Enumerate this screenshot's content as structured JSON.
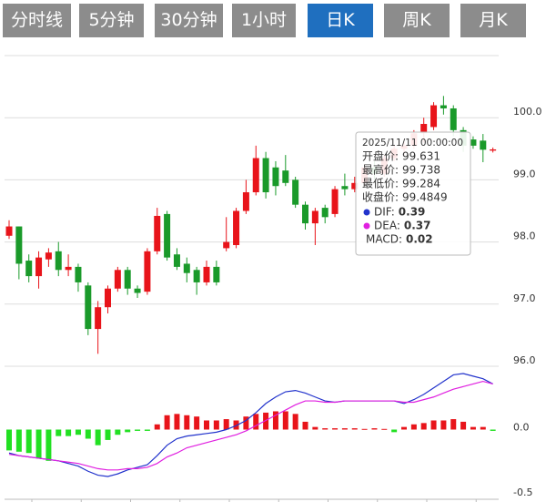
{
  "tabs": [
    {
      "label": "分时线",
      "active": false
    },
    {
      "label": "5分钟",
      "active": false
    },
    {
      "label": "30分钟",
      "active": false
    },
    {
      "label": "1小时",
      "active": false
    },
    {
      "label": "日K",
      "active": true
    },
    {
      "label": "周K",
      "active": false
    },
    {
      "label": "月K",
      "active": false
    }
  ],
  "chart_data": [
    {
      "type": "candlestick",
      "up_color": "#e8141a",
      "down_color": "#1a9a2a",
      "grid": true,
      "ylim": [
        96,
        101
      ],
      "yticks": [
        {
          "value": 96,
          "label": "96.0"
        },
        {
          "value": 97,
          "label": "97.0"
        },
        {
          "value": 98,
          "label": "98.0"
        },
        {
          "value": 99,
          "label": "99.0"
        },
        {
          "value": 100,
          "label": "100.0"
        }
      ],
      "open": [
        98.1,
        98.25,
        97.7,
        97.45,
        97.72,
        97.85,
        97.55,
        97.6,
        97.3,
        96.6,
        96.95,
        97.25,
        97.55,
        97.25,
        97.2,
        97.85,
        98.45,
        97.8,
        97.65,
        97.55,
        97.35,
        97.6,
        97.9,
        97.95,
        98.5,
        98.8,
        99.35,
        99.2,
        99.15,
        99.0,
        98.6,
        98.3,
        98.55,
        98.45,
        98.9,
        98.85,
        98.95,
        99.2,
        99.1,
        99.35,
        99.5,
        99.55,
        99.75,
        99.85,
        100.2,
        100.15,
        99.8,
        99.65,
        99.631,
        99.47
      ],
      "high": [
        98.35,
        98.25,
        97.8,
        97.85,
        97.9,
        98.0,
        97.8,
        97.65,
        97.35,
        97.05,
        97.3,
        97.6,
        97.6,
        97.3,
        97.9,
        98.55,
        98.5,
        97.9,
        97.75,
        97.6,
        97.7,
        97.7,
        98.4,
        98.55,
        99.0,
        99.55,
        99.45,
        99.3,
        99.4,
        99.05,
        98.65,
        98.55,
        98.6,
        98.9,
        99.1,
        99.05,
        99.25,
        99.3,
        99.4,
        99.55,
        99.65,
        99.8,
        100.0,
        100.25,
        100.35,
        100.2,
        99.85,
        99.7,
        99.738,
        99.52
      ],
      "low": [
        98.05,
        97.4,
        97.35,
        97.25,
        97.6,
        97.45,
        97.45,
        97.2,
        96.5,
        96.2,
        96.85,
        97.2,
        97.15,
        97.1,
        97.15,
        97.8,
        97.7,
        97.55,
        97.35,
        97.15,
        97.3,
        97.3,
        97.85,
        97.9,
        98.45,
        98.75,
        98.7,
        98.75,
        98.9,
        98.55,
        98.2,
        97.95,
        98.3,
        98.4,
        98.75,
        98.8,
        98.9,
        99.0,
        99.05,
        99.3,
        99.4,
        99.5,
        99.6,
        99.8,
        100.05,
        99.7,
        99.45,
        99.5,
        99.284,
        99.44
      ],
      "close": [
        98.25,
        97.65,
        97.45,
        97.75,
        97.83,
        97.55,
        97.6,
        97.35,
        96.6,
        96.95,
        97.25,
        97.55,
        97.25,
        97.18,
        97.85,
        98.42,
        97.75,
        97.6,
        97.5,
        97.35,
        97.6,
        97.35,
        98.0,
        98.5,
        98.8,
        99.35,
        98.8,
        98.9,
        98.95,
        98.6,
        98.3,
        98.5,
        98.4,
        98.85,
        98.85,
        98.95,
        99.2,
        99.1,
        99.35,
        99.5,
        99.55,
        99.75,
        99.9,
        100.2,
        100.15,
        99.8,
        99.55,
        99.55,
        99.4849,
        99.49
      ]
    },
    {
      "type": "macd",
      "ylim": [
        -0.5,
        0.5
      ],
      "yticks": [
        -0.5,
        {
          "value": 0,
          "label": "0.0"
        }
      ],
      "dif": {
        "color": "#2233cc",
        "values": [
          -0.18,
          -0.2,
          -0.21,
          -0.22,
          -0.23,
          -0.24,
          -0.26,
          -0.28,
          -0.32,
          -0.35,
          -0.36,
          -0.34,
          -0.31,
          -0.29,
          -0.27,
          -0.2,
          -0.12,
          -0.07,
          -0.05,
          -0.04,
          -0.03,
          -0.02,
          0.0,
          0.03,
          0.07,
          0.13,
          0.2,
          0.25,
          0.29,
          0.3,
          0.28,
          0.25,
          0.22,
          0.21,
          0.22,
          0.22,
          0.22,
          0.22,
          0.22,
          0.22,
          0.2,
          0.23,
          0.27,
          0.32,
          0.37,
          0.42,
          0.43,
          0.41,
          0.39,
          0.35
        ]
      },
      "dea": {
        "color": "#e020e0",
        "values": [
          -0.19,
          -0.2,
          -0.21,
          -0.22,
          -0.23,
          -0.24,
          -0.25,
          -0.26,
          -0.28,
          -0.3,
          -0.31,
          -0.31,
          -0.3,
          -0.3,
          -0.29,
          -0.26,
          -0.21,
          -0.18,
          -0.14,
          -0.12,
          -0.1,
          -0.08,
          -0.06,
          -0.04,
          -0.01,
          0.03,
          0.07,
          0.11,
          0.15,
          0.19,
          0.22,
          0.22,
          0.21,
          0.21,
          0.22,
          0.22,
          0.22,
          0.22,
          0.22,
          0.22,
          0.21,
          0.21,
          0.23,
          0.25,
          0.28,
          0.31,
          0.33,
          0.35,
          0.37,
          0.35
        ]
      },
      "histogram": {
        "up_color": "#e8141a",
        "down_color": "#22e022",
        "values": [
          -0.16,
          -0.17,
          -0.18,
          -0.22,
          -0.24,
          -0.05,
          -0.05,
          -0.04,
          -0.07,
          -0.12,
          -0.08,
          -0.04,
          -0.02,
          -0.01,
          -0.01,
          0.04,
          0.11,
          0.12,
          0.11,
          0.1,
          0.07,
          0.07,
          0.08,
          0.07,
          0.1,
          0.12,
          0.13,
          0.14,
          0.14,
          0.12,
          0.06,
          0.02,
          0.01,
          0.01,
          0.01,
          0.01,
          0.005,
          0.01,
          0.005,
          -0.02,
          0.02,
          0.04,
          0.05,
          0.07,
          0.07,
          0.08,
          0.06,
          0.02,
          0.02,
          -0.01
        ]
      }
    }
  ],
  "tooltip": {
    "date": "2025/11/11 00:00:00",
    "labels": [
      "开盘价:",
      "最高价:",
      "最低价:",
      "收盘价:",
      "DIF:",
      "DEA:",
      "MACD:"
    ]
  }
}
